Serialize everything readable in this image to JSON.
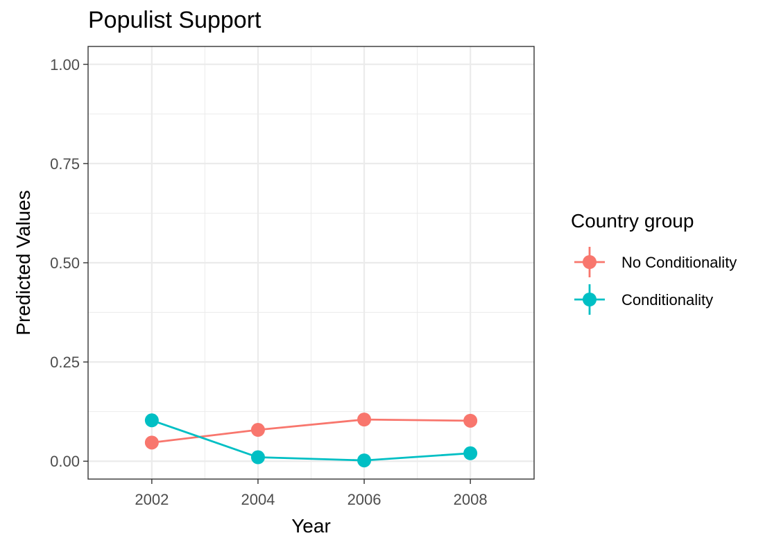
{
  "chart_data": {
    "type": "line",
    "title": "Populist Support",
    "xlabel": "Year",
    "ylabel": "Predicted Values",
    "x": [
      2002,
      2004,
      2006,
      2008
    ],
    "xlim": [
      2000.8,
      2009.2
    ],
    "ylim": [
      -0.045,
      1.045
    ],
    "x_ticks": [
      "2002",
      "2004",
      "2006",
      "2008"
    ],
    "y_ticks": [
      "0.00",
      "0.25",
      "0.50",
      "0.75",
      "1.00"
    ],
    "grid": true,
    "legend": {
      "title": "Country group",
      "position": "right"
    },
    "series": [
      {
        "name": "No Conditionality",
        "color": "#F8766D",
        "values": [
          0.047,
          0.079,
          0.105,
          0.102
        ]
      },
      {
        "name": "Conditionality",
        "color": "#00BFC4",
        "values": [
          0.103,
          0.01,
          0.002,
          0.02
        ]
      }
    ]
  }
}
